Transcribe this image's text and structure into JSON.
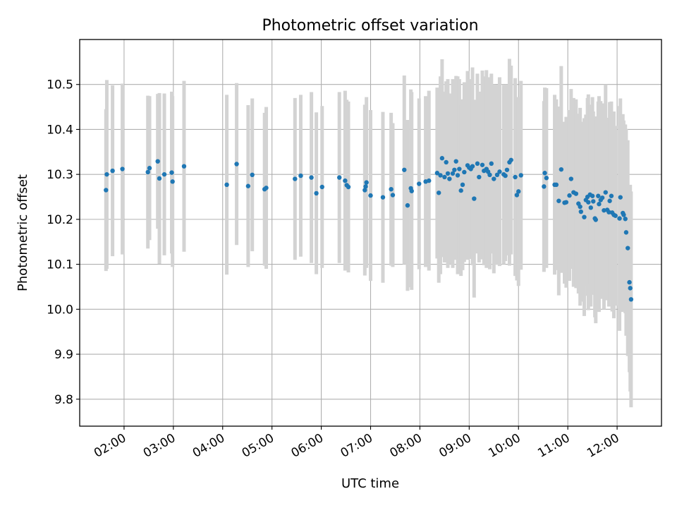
{
  "chart_data": {
    "type": "scatter",
    "title": "Photometric offset variation",
    "xlabel": "UTC time",
    "ylabel": "Photometric offset",
    "x_ticks": [
      "02:00",
      "03:00",
      "04:00",
      "05:00",
      "06:00",
      "07:00",
      "08:00",
      "09:00",
      "10:00",
      "11:00",
      "12:00"
    ],
    "y_ticks": [
      9.8,
      9.9,
      10.0,
      10.1,
      10.2,
      10.3,
      10.4,
      10.5
    ],
    "xlim": [
      "01:06",
      "12:54"
    ],
    "ylim": [
      9.74,
      10.6
    ],
    "grid": true,
    "colors": {
      "points": "#1f77b4",
      "errorbars": "#d3d3d3",
      "grid": "#b0b0b0"
    },
    "series": [
      {
        "points": [
          {
            "x": "01:38",
            "y": 10.265,
            "err": 0.18
          },
          {
            "x": "01:39",
            "y": 10.3,
            "err": 0.21
          },
          {
            "x": "01:46",
            "y": 10.308,
            "err": 0.19
          },
          {
            "x": "01:58",
            "y": 10.312,
            "err": 0.19
          },
          {
            "x": "02:29",
            "y": 10.305,
            "err": 0.17
          },
          {
            "x": "02:31",
            "y": 10.314,
            "err": 0.16
          },
          {
            "x": "02:41",
            "y": 10.329,
            "err": 0.15
          },
          {
            "x": "02:43",
            "y": 10.291,
            "err": 0.19
          },
          {
            "x": "02:49",
            "y": 10.3,
            "err": 0.18
          },
          {
            "x": "02:58",
            "y": 10.304,
            "err": 0.18
          },
          {
            "x": "02:59",
            "y": 10.284,
            "err": 0.19
          },
          {
            "x": "03:13",
            "y": 10.318,
            "err": 0.19
          },
          {
            "x": "04:05",
            "y": 10.277,
            "err": 0.2
          },
          {
            "x": "04:17",
            "y": 10.323,
            "err": 0.18
          },
          {
            "x": "04:31",
            "y": 10.274,
            "err": 0.18
          },
          {
            "x": "04:36",
            "y": 10.299,
            "err": 0.17
          },
          {
            "x": "04:51",
            "y": 10.267,
            "err": 0.17
          },
          {
            "x": "04:53",
            "y": 10.27,
            "err": 0.18
          },
          {
            "x": "05:28",
            "y": 10.29,
            "err": 0.18
          },
          {
            "x": "05:35",
            "y": 10.297,
            "err": 0.18
          },
          {
            "x": "05:48",
            "y": 10.293,
            "err": 0.19
          },
          {
            "x": "05:54",
            "y": 10.258,
            "err": 0.18
          },
          {
            "x": "06:01",
            "y": 10.272,
            "err": 0.18
          },
          {
            "x": "06:22",
            "y": 10.293,
            "err": 0.19
          },
          {
            "x": "06:29",
            "y": 10.286,
            "err": 0.2
          },
          {
            "x": "06:31",
            "y": 10.276,
            "err": 0.19
          },
          {
            "x": "06:33",
            "y": 10.272,
            "err": 0.19
          },
          {
            "x": "06:53",
            "y": 10.265,
            "err": 0.19
          },
          {
            "x": "06:54",
            "y": 10.273,
            "err": 0.18
          },
          {
            "x": "06:55",
            "y": 10.282,
            "err": 0.19
          },
          {
            "x": "07:00",
            "y": 10.253,
            "err": 0.19
          },
          {
            "x": "07:15",
            "y": 10.249,
            "err": 0.19
          },
          {
            "x": "07:25",
            "y": 10.267,
            "err": 0.17
          },
          {
            "x": "07:27",
            "y": 10.254,
            "err": 0.16
          },
          {
            "x": "07:41",
            "y": 10.31,
            "err": 0.21
          },
          {
            "x": "07:45",
            "y": 10.231,
            "err": 0.19
          },
          {
            "x": "07:49",
            "y": 10.269,
            "err": 0.22
          },
          {
            "x": "07:50",
            "y": 10.263,
            "err": 0.22
          },
          {
            "x": "07:59",
            "y": 10.279,
            "err": 0.19
          },
          {
            "x": "08:07",
            "y": 10.284,
            "err": 0.19
          },
          {
            "x": "08:11",
            "y": 10.286,
            "err": 0.2
          },
          {
            "x": "08:21",
            "y": 10.303,
            "err": 0.19
          },
          {
            "x": "08:23",
            "y": 10.259,
            "err": 0.2
          },
          {
            "x": "08:25",
            "y": 10.298,
            "err": 0.22
          },
          {
            "x": "08:27",
            "y": 10.336,
            "err": 0.22
          },
          {
            "x": "08:30",
            "y": 10.294,
            "err": 0.19
          },
          {
            "x": "08:32",
            "y": 10.327,
            "err": 0.18
          },
          {
            "x": "08:34",
            "y": 10.302,
            "err": 0.21
          },
          {
            "x": "08:36",
            "y": 10.29,
            "err": 0.19
          },
          {
            "x": "08:40",
            "y": 10.302,
            "err": 0.21
          },
          {
            "x": "08:42",
            "y": 10.31,
            "err": 0.2
          },
          {
            "x": "08:44",
            "y": 10.329,
            "err": 0.19
          },
          {
            "x": "08:46",
            "y": 10.298,
            "err": 0.22
          },
          {
            "x": "08:48",
            "y": 10.312,
            "err": 0.2
          },
          {
            "x": "08:50",
            "y": 10.264,
            "err": 0.19
          },
          {
            "x": "08:52",
            "y": 10.277,
            "err": 0.19
          },
          {
            "x": "08:54",
            "y": 10.305,
            "err": 0.2
          },
          {
            "x": "08:58",
            "y": 10.32,
            "err": 0.21
          },
          {
            "x": "09:00",
            "y": 10.315,
            "err": 0.19
          },
          {
            "x": "09:02",
            "y": 10.312,
            "err": 0.2
          },
          {
            "x": "09:04",
            "y": 10.318,
            "err": 0.22
          },
          {
            "x": "09:06",
            "y": 10.246,
            "err": 0.22
          },
          {
            "x": "09:10",
            "y": 10.324,
            "err": 0.2
          },
          {
            "x": "09:12",
            "y": 10.294,
            "err": 0.19
          },
          {
            "x": "09:16",
            "y": 10.321,
            "err": 0.21
          },
          {
            "x": "09:18",
            "y": 10.308,
            "err": 0.21
          },
          {
            "x": "09:21",
            "y": 10.312,
            "err": 0.22
          },
          {
            "x": "09:23",
            "y": 10.306,
            "err": 0.21
          },
          {
            "x": "09:25",
            "y": 10.299,
            "err": 0.21
          },
          {
            "x": "09:27",
            "y": 10.324,
            "err": 0.2
          },
          {
            "x": "09:30",
            "y": 10.29,
            "err": 0.21
          },
          {
            "x": "09:34",
            "y": 10.299,
            "err": 0.2
          },
          {
            "x": "09:37",
            "y": 10.306,
            "err": 0.21
          },
          {
            "x": "09:42",
            "y": 10.3,
            "err": 0.2
          },
          {
            "x": "09:44",
            "y": 10.297,
            "err": 0.19
          },
          {
            "x": "09:46",
            "y": 10.31,
            "err": 0.19
          },
          {
            "x": "09:49",
            "y": 10.327,
            "err": 0.23
          },
          {
            "x": "09:51",
            "y": 10.332,
            "err": 0.21
          },
          {
            "x": "09:56",
            "y": 10.294,
            "err": 0.22
          },
          {
            "x": "09:58",
            "y": 10.254,
            "err": 0.19
          },
          {
            "x": "10:00",
            "y": 10.262,
            "err": 0.21
          },
          {
            "x": "10:03",
            "y": 10.298,
            "err": 0.21
          },
          {
            "x": "10:31",
            "y": 10.273,
            "err": 0.19
          },
          {
            "x": "10:32",
            "y": 10.303,
            "err": 0.19
          },
          {
            "x": "10:34",
            "y": 10.292,
            "err": 0.2
          },
          {
            "x": "10:44",
            "y": 10.277,
            "err": 0.2
          },
          {
            "x": "10:46",
            "y": 10.277,
            "err": 0.19
          },
          {
            "x": "10:49",
            "y": 10.241,
            "err": 0.21
          },
          {
            "x": "10:52",
            "y": 10.311,
            "err": 0.23
          },
          {
            "x": "10:56",
            "y": 10.237,
            "err": 0.18
          },
          {
            "x": "10:58",
            "y": 10.238,
            "err": 0.19
          },
          {
            "x": "11:02",
            "y": 10.253,
            "err": 0.19
          },
          {
            "x": "11:04",
            "y": 10.29,
            "err": 0.2
          },
          {
            "x": "11:07",
            "y": 10.26,
            "err": 0.21
          },
          {
            "x": "11:10",
            "y": 10.257,
            "err": 0.21
          },
          {
            "x": "11:13",
            "y": 10.235,
            "err": 0.2
          },
          {
            "x": "11:15",
            "y": 10.228,
            "err": 0.22
          },
          {
            "x": "11:16",
            "y": 10.217,
            "err": 0.2
          },
          {
            "x": "11:20",
            "y": 10.205,
            "err": 0.22
          },
          {
            "x": "11:22",
            "y": 10.243,
            "err": 0.19
          },
          {
            "x": "11:24",
            "y": 10.25,
            "err": 0.22
          },
          {
            "x": "11:25",
            "y": 10.238,
            "err": 0.24
          },
          {
            "x": "11:27",
            "y": 10.255,
            "err": 0.2
          },
          {
            "x": "11:28",
            "y": 10.226,
            "err": 0.22
          },
          {
            "x": "11:30",
            "y": 10.252,
            "err": 0.22
          },
          {
            "x": "11:31",
            "y": 10.24,
            "err": 0.2
          },
          {
            "x": "11:33",
            "y": 10.202,
            "err": 0.22
          },
          {
            "x": "11:34",
            "y": 10.199,
            "err": 0.23
          },
          {
            "x": "11:37",
            "y": 10.252,
            "err": 0.21
          },
          {
            "x": "11:38",
            "y": 10.234,
            "err": 0.24
          },
          {
            "x": "11:40",
            "y": 10.243,
            "err": 0.22
          },
          {
            "x": "11:42",
            "y": 10.248,
            "err": 0.21
          },
          {
            "x": "11:44",
            "y": 10.22,
            "err": 0.22
          },
          {
            "x": "11:46",
            "y": 10.26,
            "err": 0.24
          },
          {
            "x": "11:48",
            "y": 10.221,
            "err": 0.2
          },
          {
            "x": "11:50",
            "y": 10.216,
            "err": 0.21
          },
          {
            "x": "11:51",
            "y": 10.241,
            "err": 0.22
          },
          {
            "x": "11:53",
            "y": 10.252,
            "err": 0.21
          },
          {
            "x": "11:54",
            "y": 10.215,
            "err": 0.22
          },
          {
            "x": "11:56",
            "y": 10.21,
            "err": 0.23
          },
          {
            "x": "11:58",
            "y": 10.208,
            "err": 0.2
          },
          {
            "x": "12:03",
            "y": 10.202,
            "err": 0.25
          },
          {
            "x": "12:04",
            "y": 10.249,
            "err": 0.22
          },
          {
            "x": "12:07",
            "y": 10.214,
            "err": 0.22
          },
          {
            "x": "12:08",
            "y": 10.21,
            "err": 0.21
          },
          {
            "x": "12:10",
            "y": 10.201,
            "err": 0.21
          },
          {
            "x": "12:11",
            "y": 10.171,
            "err": 0.23
          },
          {
            "x": "12:13",
            "y": 10.136,
            "err": 0.24
          },
          {
            "x": "12:15",
            "y": 10.06,
            "err": 0.2
          },
          {
            "x": "12:16",
            "y": 10.047,
            "err": 0.23
          },
          {
            "x": "12:17",
            "y": 10.022,
            "err": 0.24
          }
        ]
      }
    ]
  }
}
